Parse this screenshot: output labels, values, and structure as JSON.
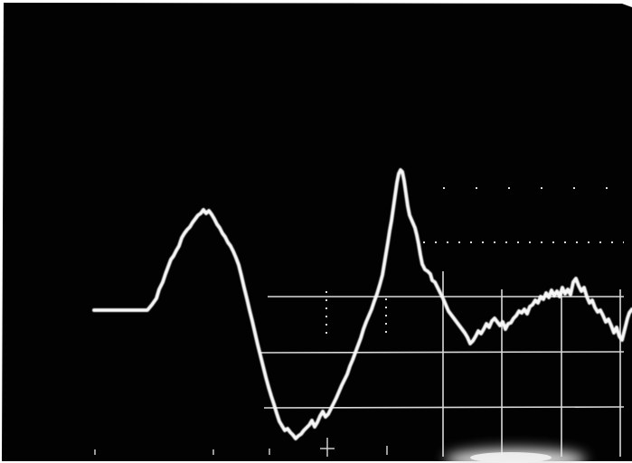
{
  "photo": {
    "subject": "oscilloscope-waveform",
    "colors": {
      "screen": "#020202",
      "trace": "#f7f7f7",
      "graticule": "#d9d9d9",
      "glow": "#e8e8e8",
      "border": "#ffffff"
    }
  }
}
